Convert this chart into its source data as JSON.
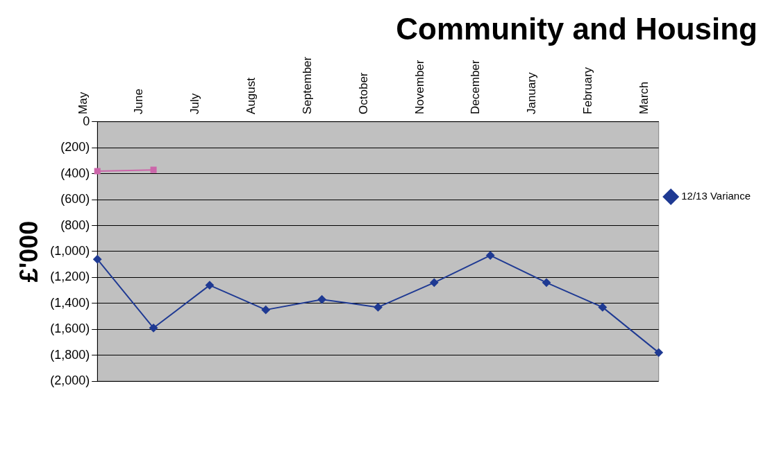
{
  "chart_data": {
    "type": "line",
    "title": "Community and Housing",
    "ylabel": "£'000",
    "categories": [
      "May",
      "June",
      "July",
      "August",
      "September",
      "October",
      "November",
      "December",
      "January",
      "February",
      "March"
    ],
    "series": [
      {
        "name": "12/13 Variance",
        "color": "#1f3a93",
        "marker": "diamond",
        "values": [
          -1060,
          -1590,
          -1260,
          -1450,
          -1370,
          -1430,
          -1240,
          -1030,
          -1240,
          -1430,
          -1780
        ]
      },
      {
        "color": "#cc66aa",
        "marker": "square",
        "values": [
          -380,
          -370,
          null,
          null,
          null,
          null,
          null,
          null,
          null,
          null,
          null
        ]
      }
    ],
    "ylim": [
      -2000,
      0
    ],
    "yticks": [
      {
        "value": 0,
        "label": "0"
      },
      {
        "value": -200,
        "label": "(200)"
      },
      {
        "value": -400,
        "label": "(400)"
      },
      {
        "value": -600,
        "label": "(600)"
      },
      {
        "value": -800,
        "label": "(800)"
      },
      {
        "value": -1000,
        "label": "(1,000)"
      },
      {
        "value": -1200,
        "label": "(1,200)"
      },
      {
        "value": -1400,
        "label": "(1,400)"
      },
      {
        "value": -1600,
        "label": "(1,600)"
      },
      {
        "value": -1800,
        "label": "(1,800)"
      },
      {
        "value": -2000,
        "label": "(2,000)"
      }
    ],
    "grid": "y",
    "legend": "right",
    "line_style": "solid"
  }
}
